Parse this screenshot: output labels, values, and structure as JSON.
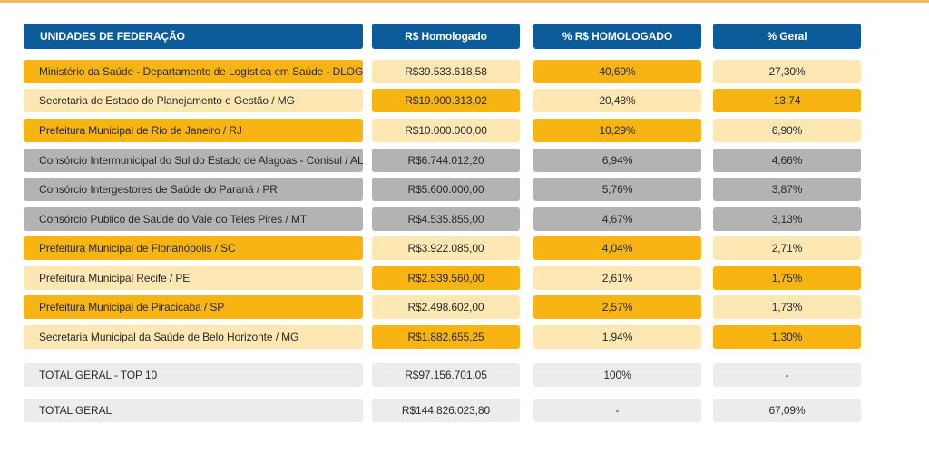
{
  "colors": {
    "header": "#0c5c9c",
    "orange": "#f8b412",
    "light": "#fde7b2",
    "gray": "#b3b3b3",
    "pale": "#ececec",
    "accent_line": "#f7b960"
  },
  "headers": {
    "unidades": "UNIDADES DE FEDERAÇÃO",
    "homologado": "R$ Homologado",
    "pct_homologado": "% R$ HOMOLOGADO",
    "pct_geral": "% Geral"
  },
  "rows": [
    {
      "name": "Ministério da Saúde - Departamento de Logística em Saúde - DLOG/DF",
      "valor": "R$39.533.618,58",
      "pct": "40,69%",
      "geral": "27,30%",
      "tones": [
        "orange",
        "light",
        "orange",
        "light"
      ]
    },
    {
      "name": "Secretaria de Estado do Planejamento e Gestão / MG",
      "valor": "R$19.900.313,02",
      "pct": "20,48%",
      "geral": "13,74",
      "tones": [
        "light",
        "orange",
        "light",
        "orange"
      ]
    },
    {
      "name": "Prefeitura Municipal de Rio de Janeiro / RJ",
      "valor": "R$10.000.000,00",
      "pct": "10,29%",
      "geral": "6,90%",
      "tones": [
        "orange",
        "light",
        "orange",
        "light"
      ]
    },
    {
      "name": "Consórcio Intermunicipal do Sul do Estado de Alagoas - Conisul / AL",
      "valor": "R$6.744.012,20",
      "pct": "6,94%",
      "geral": "4,66%",
      "tones": [
        "gray",
        "gray",
        "gray",
        "gray"
      ]
    },
    {
      "name": "Consórcio Intergestores de Saúde do Paraná / PR",
      "valor": "R$5.600.000,00",
      "pct": "5,76%",
      "geral": "3,87%",
      "tones": [
        "gray",
        "gray",
        "gray",
        "gray"
      ]
    },
    {
      "name": "Consórcio Publico de Saúde do Vale do Teles Pires / MT",
      "valor": "R$4.535.855,00",
      "pct": "4,67%",
      "geral": "3,13%",
      "tones": [
        "gray",
        "gray",
        "gray",
        "gray"
      ]
    },
    {
      "name": "Prefeitura Municipal de Florianópolis / SC",
      "valor": "R$3.922.085,00",
      "pct": "4,04%",
      "geral": "2,71%",
      "tones": [
        "orange",
        "light",
        "orange",
        "light"
      ]
    },
    {
      "name": "Prefeitura Municipal Recife / PE",
      "valor": "R$2.539.560,00",
      "pct": "2,61%",
      "geral": "1,75%",
      "tones": [
        "light",
        "orange",
        "light",
        "orange"
      ]
    },
    {
      "name": "Prefeitura Municipal de Piracicaba / SP",
      "valor": "R$2.498.602,00",
      "pct": "2,57%",
      "geral": "1,73%",
      "tones": [
        "orange",
        "light",
        "orange",
        "light"
      ]
    },
    {
      "name": "Secretaria Municipal da Saúde de Belo Horizonte / MG",
      "valor": "R$1.882.655,25",
      "pct": "1,94%",
      "geral": "1,30%",
      "tones": [
        "light",
        "orange",
        "light",
        "orange"
      ]
    }
  ],
  "totals": [
    {
      "name": "TOTAL GERAL - TOP 10",
      "valor": "R$97.156.701,05",
      "pct": "100%",
      "geral": "-"
    },
    {
      "name": "TOTAL GERAL",
      "valor": "R$144.826.023,80",
      "pct": "-",
      "geral": "67,09%"
    }
  ]
}
